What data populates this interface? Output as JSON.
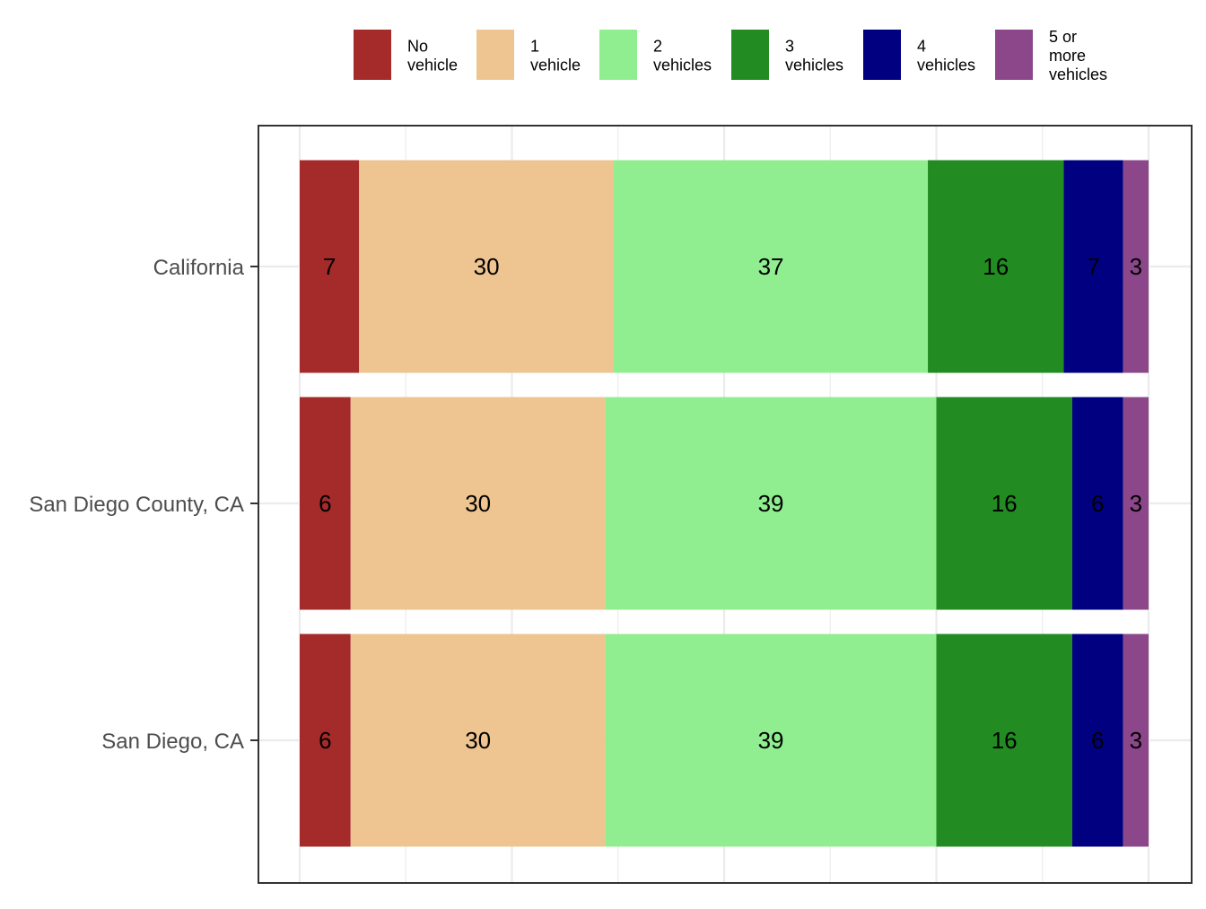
{
  "chart_data": {
    "type": "bar",
    "orientation": "horizontal",
    "stacked": true,
    "title": "",
    "xlabel": "",
    "ylabel": "",
    "xlim": [
      0,
      100
    ],
    "grid": true,
    "legend_position": "top",
    "categories": [
      "California",
      "San Diego County, CA",
      "San Diego, CA"
    ],
    "series": [
      {
        "name": "No\nvehicle",
        "color": "#A52A2A",
        "values": [
          7,
          6,
          6
        ]
      },
      {
        "name": "1\nvehicle",
        "color": "#EEC591",
        "values": [
          30,
          30,
          30
        ]
      },
      {
        "name": "2\nvehicles",
        "color": "#90EE90",
        "values": [
          37,
          39,
          39
        ]
      },
      {
        "name": "3\nvehicles",
        "color": "#228B22",
        "values": [
          16,
          16,
          16
        ]
      },
      {
        "name": "4\nvehicles",
        "color": "#000080",
        "values": [
          7,
          6,
          6
        ]
      },
      {
        "name": "5 or\nmore\nvehicles",
        "color": "#8B4789",
        "values": [
          3,
          3,
          3
        ]
      }
    ]
  }
}
